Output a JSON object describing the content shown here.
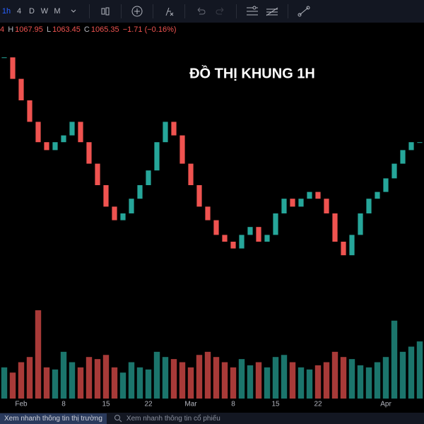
{
  "toolbar": {
    "timeframes": [
      "1h",
      "4",
      "D",
      "W",
      "M"
    ]
  },
  "ohlc": {
    "prefix": "4",
    "h_label": "H",
    "high": "1067.95",
    "l_label": "L",
    "low": "1063.45",
    "c_label": "C",
    "close": "1065.35",
    "change": "−1.71 (−0.16%)"
  },
  "chart_data": {
    "type": "candlestick",
    "title": "ĐỒ THỊ KHUNG 1H",
    "x_labels": [
      "Feb",
      "8",
      "15",
      "22",
      "Mar",
      "8",
      "15",
      "22",
      "Apr"
    ],
    "x_label_positions": [
      2.5,
      7.5,
      12.5,
      17.5,
      22.5,
      27.5,
      32.5,
      37.5,
      45.5
    ],
    "values": [
      1188,
      1169,
      1150,
      1131,
      1113,
      1106,
      1113,
      1119,
      1131,
      1113,
      1094,
      1075,
      1056,
      1044,
      1050,
      1063,
      1075,
      1088,
      1113,
      1131,
      1119,
      1094,
      1075,
      1056,
      1044,
      1031,
      1025,
      1019,
      1031,
      1038,
      1025,
      1031,
      1050,
      1063,
      1056,
      1063,
      1069,
      1063,
      1050,
      1025,
      1013,
      1031,
      1050,
      1063,
      1069,
      1081,
      1094,
      1106,
      1113,
      1113
    ],
    "ylim": [
      1000,
      1200
    ],
    "volumes": [
      30,
      25,
      35,
      40,
      85,
      30,
      28,
      45,
      35,
      30,
      40,
      38,
      42,
      30,
      25,
      35,
      30,
      28,
      45,
      40,
      38,
      35,
      30,
      42,
      45,
      40,
      35,
      30,
      38,
      32,
      35,
      30,
      40,
      42,
      35,
      30,
      28,
      32,
      35,
      45,
      40,
      38,
      32,
      30,
      35,
      40,
      75,
      45,
      50,
      55
    ],
    "vlim": [
      0,
      100
    ],
    "up_color": "#26a69a",
    "down_color": "#ef5350"
  },
  "bottom": {
    "market_button": "Xem nhanh thông tin thị trường",
    "search_placeholder": "Xem nhanh thông tin cổ phiếu"
  }
}
